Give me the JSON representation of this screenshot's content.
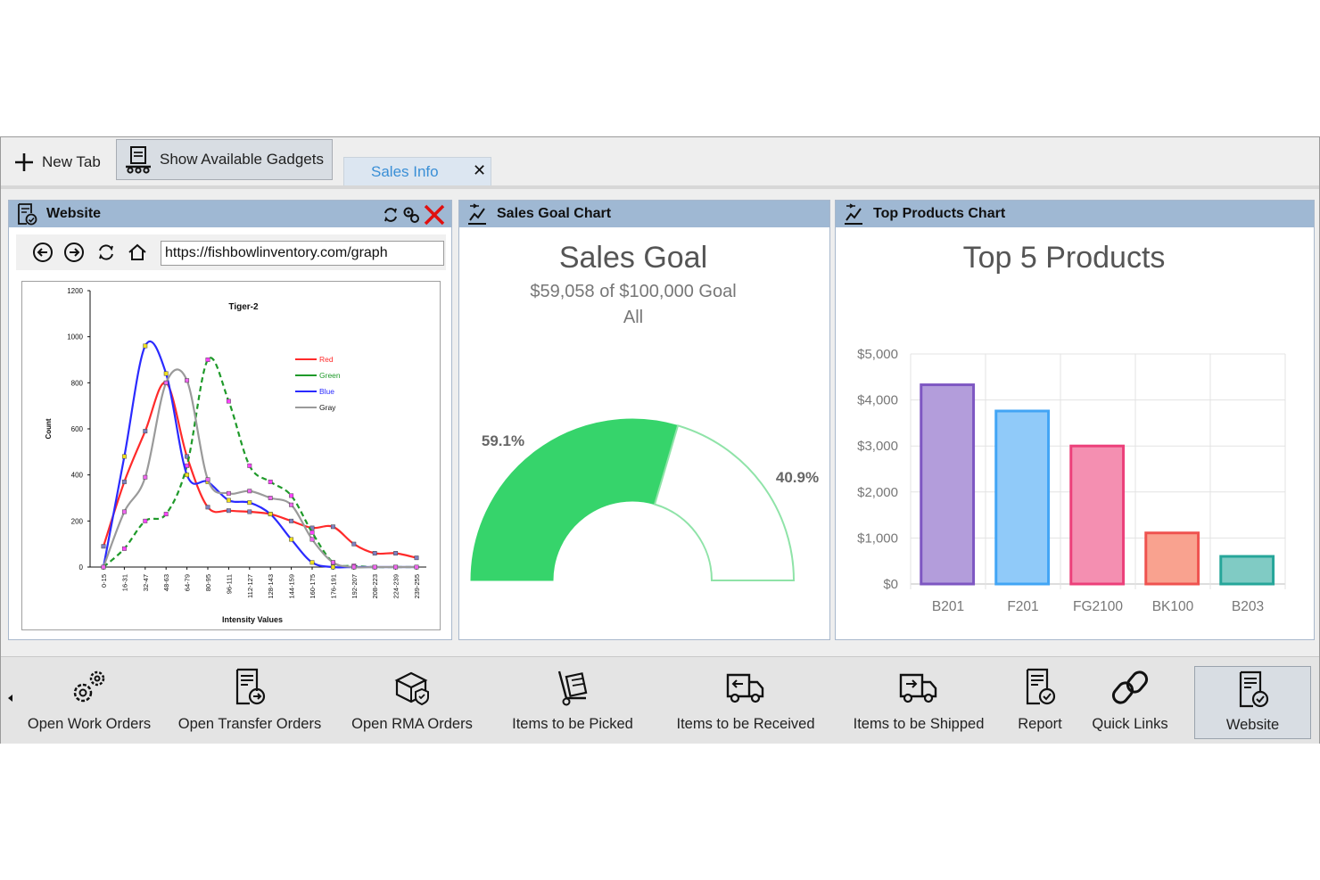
{
  "toolbar": {
    "new_tab": "New Tab",
    "show_gadgets": "Show Available Gadgets"
  },
  "tabs": [
    {
      "label": "Sales Info",
      "close": "✕"
    }
  ],
  "website_panel": {
    "title": "Website",
    "url": "https://fishbowlinventory.com/graph",
    "embedded_chart": {
      "title": "Tiger-2",
      "xlabel": "Intensity Values",
      "ylabel": "Count",
      "y_ticks": [
        "0",
        "200",
        "400",
        "600",
        "800",
        "1000",
        "1200"
      ],
      "x_ticks": [
        "0-15",
        "16-31",
        "32-47",
        "48-63",
        "64-79",
        "80-95",
        "96-111",
        "112-127",
        "128-143",
        "144-159",
        "160-175",
        "176-191",
        "192-207",
        "208-223",
        "224-239",
        "239-255"
      ],
      "legend": [
        "Red",
        "Green",
        "Blue",
        "Gray"
      ]
    }
  },
  "sales_goal_panel": {
    "title": "Sales Goal Chart",
    "chart_title": "Sales Goal",
    "subtitle": "$59,058 of $100,000 Goal",
    "filter": "All",
    "achieved_label": "59.1%",
    "remaining_label": "40.9%"
  },
  "top_products_panel": {
    "title": "Top Products Chart",
    "chart_title": "Top 5 Products"
  },
  "chart_data": [
    {
      "type": "line",
      "title": "Tiger-2",
      "xlabel": "Intensity Values",
      "ylabel": "Count",
      "ylim": [
        0,
        1200
      ],
      "categories": [
        "0-15",
        "16-31",
        "32-47",
        "48-63",
        "64-79",
        "80-95",
        "96-111",
        "112-127",
        "128-143",
        "144-159",
        "160-175",
        "176-191",
        "192-207",
        "208-223",
        "224-239",
        "239-255"
      ],
      "series": [
        {
          "name": "Red",
          "color": "#ff2a2a",
          "values": [
            90,
            370,
            590,
            800,
            480,
            260,
            245,
            240,
            230,
            200,
            170,
            175,
            100,
            60,
            60,
            40
          ]
        },
        {
          "name": "Green",
          "color": "#1f9a2a",
          "values": [
            0,
            80,
            200,
            230,
            440,
            900,
            720,
            440,
            370,
            310,
            150,
            20,
            5,
            0,
            0,
            0
          ]
        },
        {
          "name": "Blue",
          "color": "#2a2aff",
          "values": [
            0,
            480,
            960,
            840,
            400,
            370,
            290,
            280,
            230,
            120,
            20,
            0,
            0,
            0,
            0,
            0
          ]
        },
        {
          "name": "Gray",
          "color": "#9a9a9a",
          "values": [
            0,
            240,
            390,
            800,
            810,
            380,
            320,
            330,
            300,
            270,
            120,
            20,
            0,
            0,
            0,
            0
          ]
        }
      ]
    },
    {
      "type": "pie",
      "title": "Sales Goal",
      "subtitle": "$59,058 of $100,000 Goal",
      "categories": [
        "Achieved",
        "Remaining"
      ],
      "values": [
        59.1,
        40.9
      ],
      "colors": [
        "#36d46b",
        "#ffffff"
      ]
    },
    {
      "type": "bar",
      "title": "Top 5 Products",
      "categories": [
        "B201",
        "F201",
        "FG2100",
        "BK100",
        "B203"
      ],
      "values": [
        4330,
        3760,
        3000,
        1110,
        600
      ],
      "ylim": [
        0,
        5000
      ],
      "y_ticks": [
        "$0",
        "$1,000",
        "$2,000",
        "$3,000",
        "$4,000",
        "$5,000"
      ],
      "fills": [
        "#b39ddb",
        "#90caf9",
        "#f48fb1",
        "#f9a28f",
        "#80cbc4"
      ],
      "strokes": [
        "#7e57c2",
        "#42a5f5",
        "#ec407a",
        "#ef5350",
        "#26a69a"
      ]
    }
  ],
  "bottom_bar": {
    "items": [
      {
        "label": "Open Work Orders",
        "icon": "gears-icon"
      },
      {
        "label": "Open Transfer Orders",
        "icon": "transfer-document-icon"
      },
      {
        "label": "Open RMA Orders",
        "icon": "rma-box-icon"
      },
      {
        "label": "Items to be Picked",
        "icon": "hand-truck-icon"
      },
      {
        "label": "Items to be Received",
        "icon": "receive-truck-icon"
      },
      {
        "label": "Items to be Shipped",
        "icon": "ship-truck-icon"
      },
      {
        "label": "Report",
        "icon": "report-icon"
      },
      {
        "label": "Quick Links",
        "icon": "link-icon"
      },
      {
        "label": "Website",
        "icon": "website-icon"
      }
    ]
  }
}
